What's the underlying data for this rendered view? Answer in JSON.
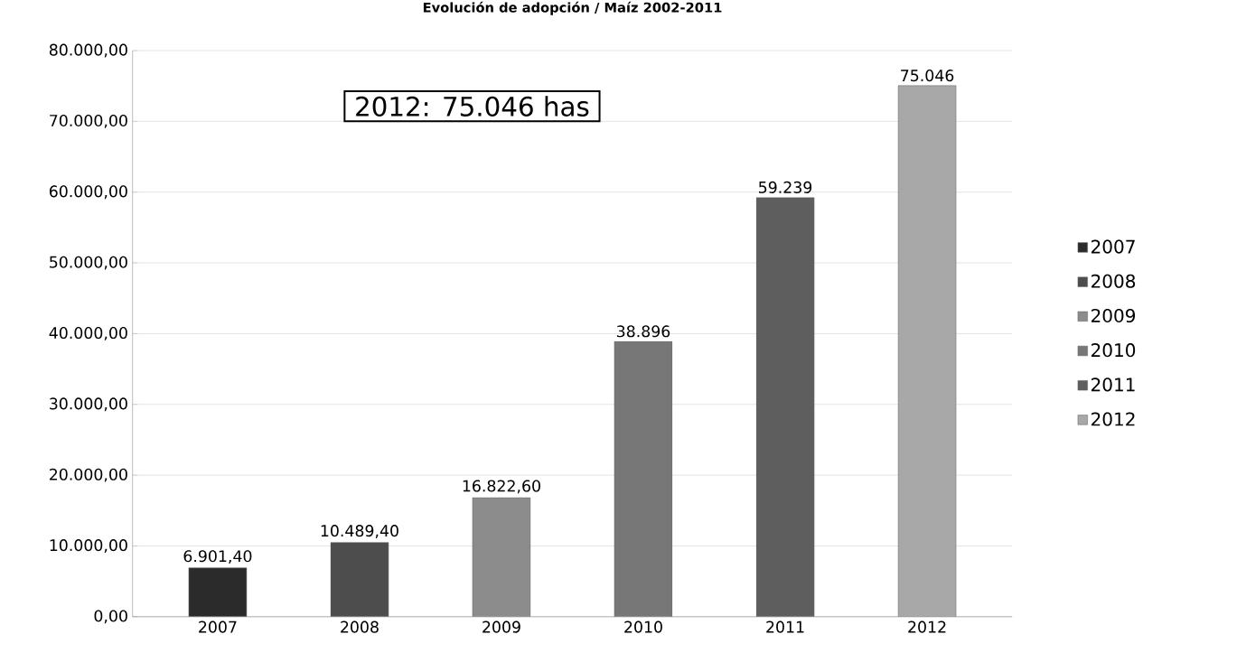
{
  "chart_data": {
    "type": "bar",
    "title": "Evolución de adopción / Maíz 2002-2011",
    "categories": [
      "2007",
      "2008",
      "2009",
      "2010",
      "2011",
      "2012"
    ],
    "series": [
      {
        "name": "2007",
        "color": "#2b2b2b",
        "values": [
          6901.4,
          null,
          null,
          null,
          null,
          null
        ],
        "value_labels": [
          "6.901,40",
          null,
          null,
          null,
          null,
          null
        ]
      },
      {
        "name": "2008",
        "color": "#4d4d4d",
        "values": [
          null,
          10489.4,
          null,
          null,
          null,
          null
        ],
        "value_labels": [
          null,
          "10.489,40",
          null,
          null,
          null,
          null
        ]
      },
      {
        "name": "2009",
        "color": "#8c8c8c",
        "values": [
          null,
          null,
          16822.6,
          null,
          null,
          null
        ],
        "value_labels": [
          null,
          null,
          "16.822,60",
          null,
          null,
          null
        ]
      },
      {
        "name": "2010",
        "color": "#777777",
        "values": [
          null,
          null,
          null,
          38896,
          null,
          null
        ],
        "value_labels": [
          null,
          null,
          null,
          "38.896",
          null,
          null
        ]
      },
      {
        "name": "2011",
        "color": "#5e5e5e",
        "values": [
          null,
          null,
          null,
          null,
          59239,
          null
        ],
        "value_labels": [
          null,
          null,
          null,
          null,
          "59.239",
          null
        ]
      },
      {
        "name": "2012",
        "color": "#a8a8a8",
        "values": [
          null,
          null,
          null,
          null,
          null,
          75046
        ],
        "value_labels": [
          null,
          null,
          null,
          null,
          null,
          "75.046"
        ]
      }
    ],
    "ylim": [
      0,
      80000
    ],
    "yticks": [
      {
        "value": 0,
        "label": "0,00"
      },
      {
        "value": 10000,
        "label": "10.000,00"
      },
      {
        "value": 20000,
        "label": "20.000,00"
      },
      {
        "value": 30000,
        "label": "30.000,00"
      },
      {
        "value": 40000,
        "label": "40.000,00"
      },
      {
        "value": 50000,
        "label": "50.000,00"
      },
      {
        "value": 60000,
        "label": "60.000,00"
      },
      {
        "value": 70000,
        "label": "70.000,00"
      },
      {
        "value": 80000,
        "label": "80.000,00"
      }
    ],
    "grid": "y",
    "legend": "right",
    "annotations": [
      "2012: 75.046 has"
    ]
  }
}
